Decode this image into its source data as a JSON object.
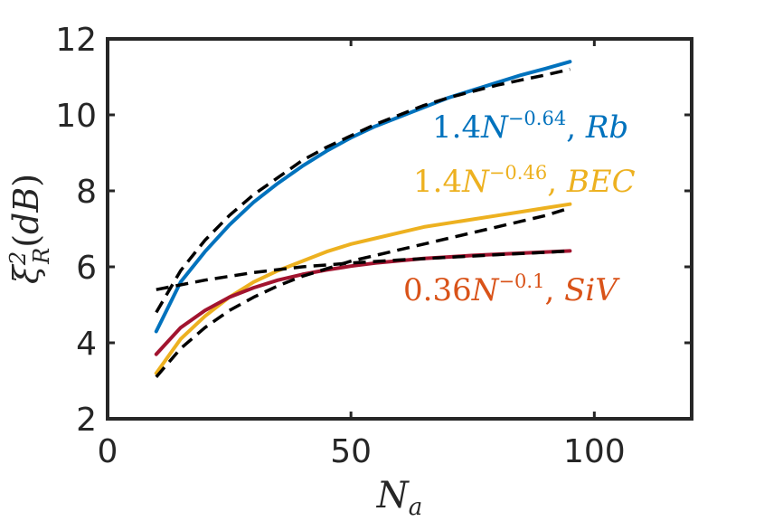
{
  "chart_data": {
    "type": "line",
    "xlabel": "N_a",
    "ylabel": "ξ_R^2(dB)",
    "xlim": [
      0,
      120
    ],
    "ylim": [
      2,
      12
    ],
    "xticks": [
      0,
      50,
      100
    ],
    "yticks": [
      2,
      4,
      6,
      8,
      10,
      12
    ],
    "grid": false,
    "series": [
      {
        "name": "Rb",
        "color": "#0072BD",
        "x": [
          10,
          15,
          20,
          25,
          30,
          35,
          40,
          45,
          50,
          55,
          60,
          65,
          70,
          75,
          80,
          85,
          90,
          95
        ],
        "values": [
          4.3,
          5.6,
          6.4,
          7.1,
          7.7,
          8.2,
          8.65,
          9.05,
          9.4,
          9.7,
          9.95,
          10.2,
          10.45,
          10.65,
          10.85,
          11.05,
          11.22,
          11.4
        ]
      },
      {
        "name": "BEC",
        "color": "#EDB120",
        "x": [
          10,
          15,
          20,
          25,
          30,
          35,
          40,
          45,
          50,
          55,
          60,
          65,
          70,
          75,
          80,
          85,
          90,
          95
        ],
        "values": [
          3.2,
          4.1,
          4.7,
          5.2,
          5.6,
          5.9,
          6.15,
          6.4,
          6.6,
          6.75,
          6.9,
          7.05,
          7.15,
          7.25,
          7.35,
          7.45,
          7.55,
          7.65
        ]
      },
      {
        "name": "SiV",
        "color": "#A2142F",
        "x": [
          10,
          15,
          20,
          25,
          30,
          35,
          40,
          45,
          50,
          55,
          60,
          65,
          70,
          75,
          80,
          85,
          90,
          95
        ],
        "values": [
          3.7,
          4.4,
          4.85,
          5.2,
          5.45,
          5.65,
          5.8,
          5.92,
          6.02,
          6.1,
          6.16,
          6.22,
          6.26,
          6.3,
          6.33,
          6.36,
          6.39,
          6.42
        ]
      }
    ],
    "fits": [
      {
        "name": "fit-Rb",
        "color": "#000000",
        "x": [
          10,
          15,
          20,
          25,
          30,
          35,
          40,
          45,
          50,
          55,
          60,
          65,
          70,
          75,
          80,
          85,
          90,
          95
        ],
        "values": [
          4.8,
          5.9,
          6.7,
          7.35,
          7.9,
          8.35,
          8.8,
          9.15,
          9.45,
          9.75,
          10.0,
          10.25,
          10.45,
          10.62,
          10.78,
          10.92,
          11.05,
          11.2
        ]
      },
      {
        "name": "fit-BEC",
        "color": "#000000",
        "x": [
          10,
          15,
          20,
          25,
          30,
          35,
          40,
          45,
          50,
          55,
          60,
          65,
          70,
          75,
          80,
          85,
          90,
          95
        ],
        "values": [
          3.1,
          3.85,
          4.4,
          4.85,
          5.2,
          5.5,
          5.75,
          5.95,
          6.15,
          6.3,
          6.45,
          6.6,
          6.75,
          6.9,
          7.05,
          7.2,
          7.35,
          7.55
        ]
      },
      {
        "name": "fit-SiV",
        "color": "#000000",
        "x": [
          10,
          20,
          30,
          40,
          50,
          60,
          70,
          80,
          90,
          95
        ],
        "values": [
          5.4,
          5.65,
          5.85,
          6.0,
          6.1,
          6.18,
          6.25,
          6.32,
          6.38,
          6.42
        ]
      }
    ],
    "annotations": [
      {
        "series": "Rb",
        "coef": "1.4",
        "base": "N",
        "exp": "−0.64",
        "label": "Rb",
        "color": "#0072BD"
      },
      {
        "series": "BEC",
        "coef": "1.4",
        "base": "N",
        "exp": "−0.46",
        "label": "BEC",
        "color": "#EDB120"
      },
      {
        "series": "SiV",
        "coef": "0.36",
        "base": "N",
        "exp": "−0.1",
        "label": "SiV",
        "color": "#D95319"
      }
    ]
  }
}
